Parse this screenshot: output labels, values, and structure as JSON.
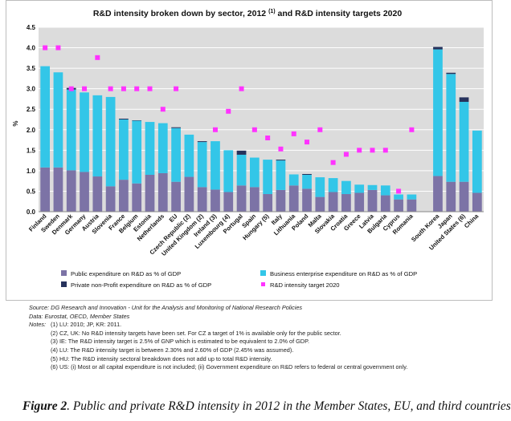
{
  "chart_data": {
    "type": "bar",
    "stacked": true,
    "title": "R&D intensity broken down by sector, 2012 ",
    "title_superscript": "(1)",
    "title_suffix": " and R&D intensity targets 2020",
    "ylabel": "%",
    "ylim": [
      0,
      4.5
    ],
    "yticks": [
      "0.0",
      "0.5",
      "1.0",
      "1.5",
      "2.0",
      "2.5",
      "3.0",
      "3.5",
      "4.0",
      "4.5"
    ],
    "grid": true,
    "legend_position": "bottom",
    "categories": [
      "Finland",
      "Sweden",
      "Denmark",
      "Germany",
      "Austria",
      "Slovenia",
      "France",
      "Belgium",
      "Estonia",
      "Netherlands",
      "EU",
      "Czech Republic (2)",
      "United Kingdom (2)",
      "Ireland (3)",
      "Luxembourg (4)",
      "Portugal",
      "Spain",
      "Hungary (5)",
      "Italy",
      "Lithuania",
      "Poland",
      "Malta",
      "Slovakia",
      "Croatia",
      "Greece",
      "Latvia",
      "Bulgaria",
      "Cyprus",
      "Romania",
      "",
      "South Korea",
      "Japan",
      "United States (6)",
      "China"
    ],
    "series": [
      {
        "name": "Public expenditure on R&D as % of GDP",
        "color": "#7c73a6",
        "values": [
          1.08,
          1.08,
          1.01,
          0.97,
          0.86,
          0.62,
          0.78,
          0.69,
          0.9,
          0.94,
          0.73,
          0.85,
          0.6,
          0.54,
          0.48,
          0.64,
          0.6,
          0.43,
          0.53,
          0.64,
          0.56,
          0.36,
          0.48,
          0.43,
          0.46,
          0.53,
          0.4,
          0.3,
          0.3,
          null,
          0.87,
          0.73,
          0.73,
          0.46
        ]
      },
      {
        "name": "Business enterprise expenditure on R&D as % of GDP",
        "color": "#33c6e8",
        "values": [
          2.47,
          2.32,
          1.97,
          1.94,
          1.98,
          2.18,
          1.47,
          1.53,
          1.29,
          1.22,
          1.31,
          1.03,
          1.1,
          1.18,
          1.02,
          0.75,
          0.72,
          0.84,
          0.72,
          0.27,
          0.34,
          0.48,
          0.34,
          0.32,
          0.2,
          0.12,
          0.24,
          0.12,
          0.12,
          null,
          3.09,
          2.63,
          1.95,
          1.52
        ]
      },
      {
        "name": "Private non-Profit expenditure on R&D as % of GDP",
        "color": "#26325c",
        "values": [
          0.0,
          0.0,
          0.04,
          0.0,
          0.0,
          0.0,
          0.02,
          0.01,
          0.0,
          0.0,
          0.02,
          0.0,
          0.02,
          0.0,
          0.0,
          0.1,
          0.0,
          0.0,
          0.02,
          0.0,
          0.02,
          0.0,
          0.0,
          0.0,
          0.0,
          0.0,
          0.0,
          0.0,
          0.0,
          null,
          0.06,
          0.03,
          0.11,
          0.0
        ]
      }
    ],
    "targets": {
      "name": "R&D intensity target 2020",
      "color": "#ff33ff",
      "values": [
        4.0,
        4.0,
        3.0,
        3.0,
        3.76,
        3.0,
        3.0,
        3.0,
        3.0,
        2.5,
        3.0,
        null,
        null,
        2.0,
        2.45,
        3.0,
        2.0,
        1.8,
        1.53,
        1.9,
        1.7,
        2.0,
        1.2,
        1.4,
        1.5,
        1.5,
        1.5,
        0.5,
        2.0,
        null,
        null,
        null,
        null,
        null
      ]
    }
  },
  "notes": {
    "source_label": "Source:",
    "source": " DG Research and Innovation - Unit for the Analysis and Monitoring of National Research Policies",
    "data_label": "Data:",
    "data": " Eurostat, OECD, Member States",
    "notes_label": "Notes:",
    "lines": [
      "(1) LU: 2010; JP, KR: 2011.",
      "(2) CZ, UK: No R&D intensity targets have been set. For CZ a target of 1% is available only for the public sector.",
      "(3) IE: The R&D intensity target is 2.5% of GNP which is estimated to be equivalent to 2.0% of GDP.",
      "(4) LU: The R&D intensity target is between 2.30% and 2.60% of GDP (2.45% was assumed).",
      "(5) HU: The R&D intensity sectoral breakdown does not add up to total R&D intensity.",
      "(6) US: (i) Most or all capital expenditure is not included; (ii) Government expenditure on R&D refers to federal or central government only."
    ]
  },
  "caption": {
    "label": "Figure 2",
    "text": ". Public and private R&D intensity in 2012 in the Member States, EU, and third countries"
  }
}
